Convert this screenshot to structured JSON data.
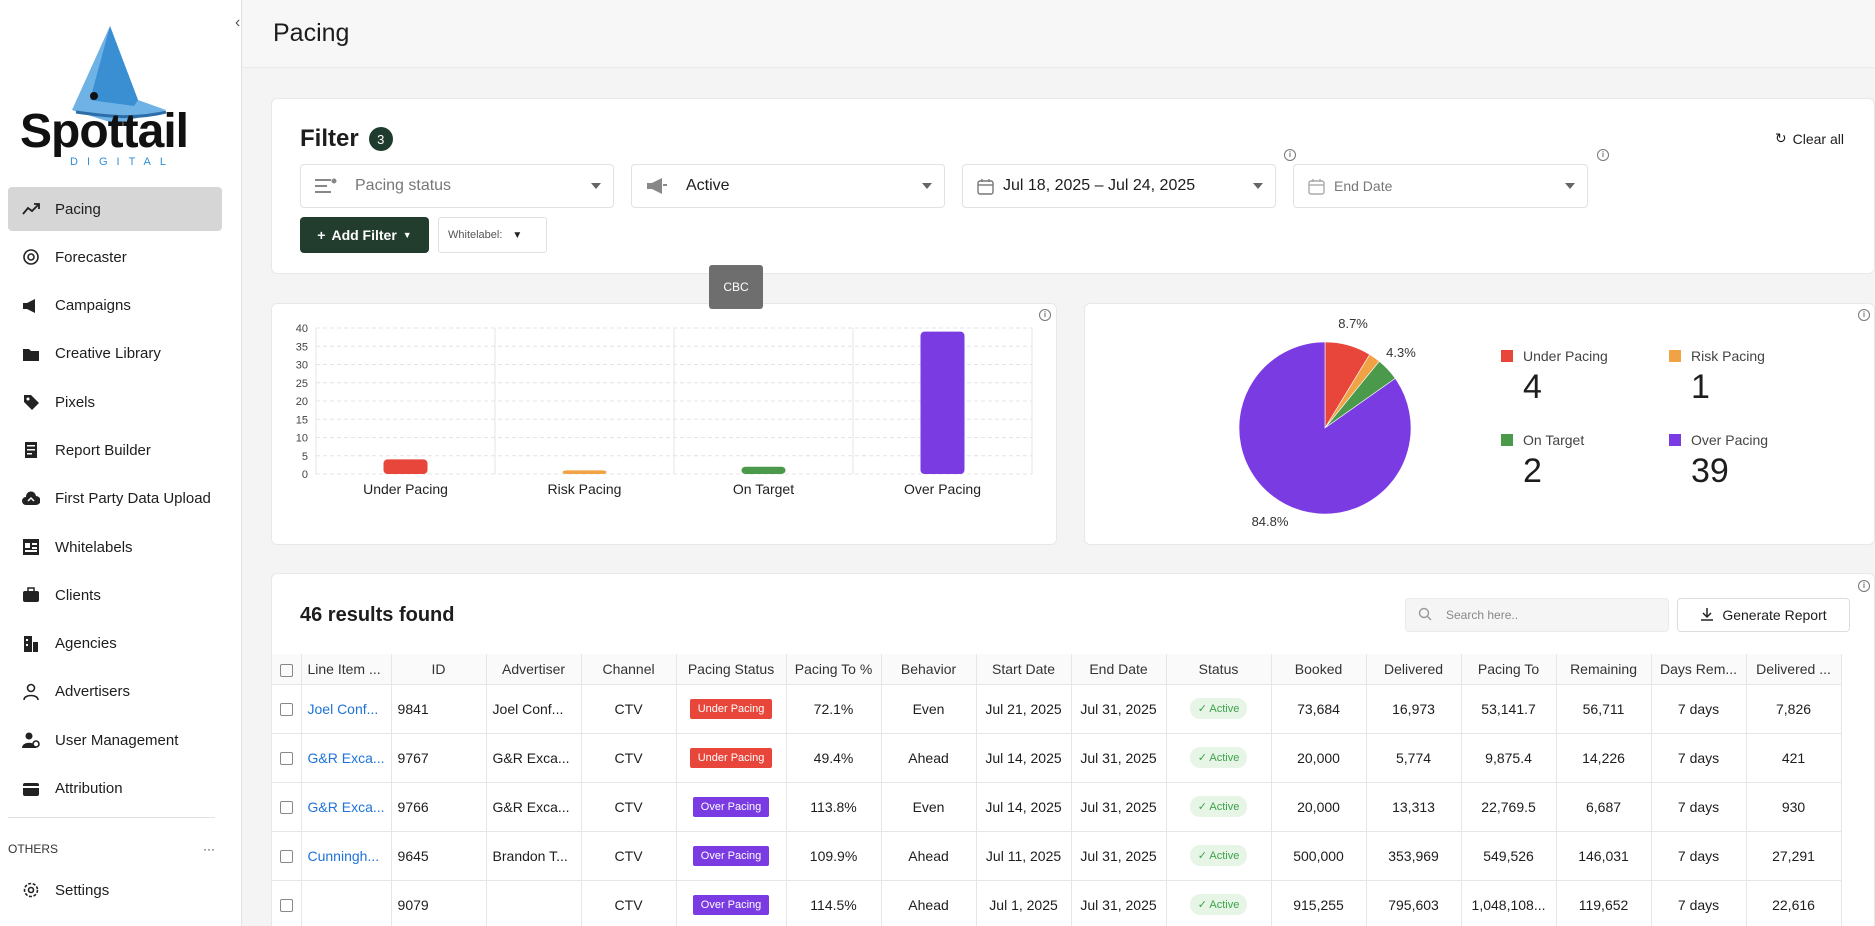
{
  "brand": {
    "name": "Spottail",
    "tagline": "DIGITAL"
  },
  "sidebar": {
    "items": [
      {
        "label": "Pacing",
        "icon": "trending-up-icon"
      },
      {
        "label": "Forecaster",
        "icon": "target-icon"
      },
      {
        "label": "Campaigns",
        "icon": "megaphone-icon"
      },
      {
        "label": "Creative Library",
        "icon": "folder-icon"
      },
      {
        "label": "Pixels",
        "icon": "tag-icon"
      },
      {
        "label": "Report Builder",
        "icon": "report-icon"
      },
      {
        "label": "First Party Data Upload",
        "icon": "cloud-upload-icon"
      },
      {
        "label": "Whitelabels",
        "icon": "grid-icon"
      },
      {
        "label": "Clients",
        "icon": "briefcase-icon"
      },
      {
        "label": "Agencies",
        "icon": "building-icon"
      },
      {
        "label": "Advertisers",
        "icon": "user-icon"
      },
      {
        "label": "User Management",
        "icon": "user-gear-icon"
      },
      {
        "label": "Attribution",
        "icon": "wallet-icon"
      }
    ],
    "others_label": "OTHERS",
    "others_more": "···",
    "settings_label": "Settings"
  },
  "page": {
    "title": "Pacing"
  },
  "filter": {
    "title": "Filter",
    "count": "3",
    "clear_all": "Clear all",
    "pacing_status_placeholder": "Pacing status",
    "status_value": "Active",
    "date_range": "Jul 18, 2025 – Jul 24, 2025",
    "end_date_placeholder": "End Date",
    "add_filter": "Add Filter",
    "whitelabel_label": "Whitelabel:",
    "tooltip": "CBC"
  },
  "chart_data": [
    {
      "type": "bar",
      "categories": [
        "Under Pacing",
        "Risk Pacing",
        "On Target",
        "Over Pacing"
      ],
      "values": [
        4,
        1,
        2,
        39
      ],
      "colors": [
        "#e8463a",
        "#f0a244",
        "#4b9a4c",
        "#7a3be3"
      ],
      "ylim": [
        0,
        40
      ],
      "yticks": [
        0,
        5,
        10,
        15,
        20,
        25,
        30,
        35,
        40
      ],
      "grid": true
    },
    {
      "type": "pie",
      "labels": [
        "Under Pacing",
        "Risk Pacing",
        "On Target",
        "Over Pacing"
      ],
      "values": [
        4,
        1,
        2,
        39
      ],
      "percent_labels": [
        "8.7%",
        "",
        "4.3%",
        "84.8%"
      ],
      "colors": [
        "#e8463a",
        "#f0a244",
        "#4b9a4c",
        "#7a3be3"
      ],
      "legend_position": "right"
    }
  ],
  "legend": [
    {
      "label": "Under Pacing",
      "value": "4",
      "color": "#e8463a"
    },
    {
      "label": "Risk Pacing",
      "value": "1",
      "color": "#f0a244"
    },
    {
      "label": "On Target",
      "value": "2",
      "color": "#4b9a4c"
    },
    {
      "label": "Over Pacing",
      "value": "39",
      "color": "#7a3be3"
    }
  ],
  "results": {
    "count_text": "46 results found",
    "search_placeholder": "Search here..",
    "generate_report": "Generate Report"
  },
  "table": {
    "columns": [
      "Line Item ...",
      "ID",
      "Advertiser",
      "Channel",
      "Pacing Status",
      "Pacing To %",
      "Behavior",
      "Start Date",
      "End Date",
      "Status",
      "Booked",
      "Delivered",
      "Pacing To",
      "Remaining",
      "Days Rem...",
      "Delivered ..."
    ],
    "rows": [
      {
        "line_item": "Joel Conf...",
        "id": "9841",
        "advertiser": "Joel Conf...",
        "channel": "CTV",
        "pacing_status": "Under Pacing",
        "pacing_color": "#e8463a",
        "pacing_pct": "72.1%",
        "behavior": "Even",
        "start": "Jul 21, 2025",
        "end": "Jul 31, 2025",
        "status": "Active",
        "booked": "73,684",
        "delivered": "16,973",
        "pacing_to": "53,141.7",
        "remaining": "56,711",
        "days": "7 days",
        "delivered2": "7,826"
      },
      {
        "line_item": "G&R Exca...",
        "id": "9767",
        "advertiser": "G&R Exca...",
        "channel": "CTV",
        "pacing_status": "Under Pacing",
        "pacing_color": "#e8463a",
        "pacing_pct": "49.4%",
        "behavior": "Ahead",
        "start": "Jul 14, 2025",
        "end": "Jul 31, 2025",
        "status": "Active",
        "booked": "20,000",
        "delivered": "5,774",
        "pacing_to": "9,875.4",
        "remaining": "14,226",
        "days": "7 days",
        "delivered2": "421"
      },
      {
        "line_item": "G&R Exca...",
        "id": "9766",
        "advertiser": "G&R Exca...",
        "channel": "CTV",
        "pacing_status": "Over Pacing",
        "pacing_color": "#7a3be3",
        "pacing_pct": "113.8%",
        "behavior": "Even",
        "start": "Jul 14, 2025",
        "end": "Jul 31, 2025",
        "status": "Active",
        "booked": "20,000",
        "delivered": "13,313",
        "pacing_to": "22,769.5",
        "remaining": "6,687",
        "days": "7 days",
        "delivered2": "930"
      },
      {
        "line_item": "Cunningh...",
        "id": "9645",
        "advertiser": "Brandon T...",
        "channel": "CTV",
        "pacing_status": "Over Pacing",
        "pacing_color": "#7a3be3",
        "pacing_pct": "109.9%",
        "behavior": "Ahead",
        "start": "Jul 11, 2025",
        "end": "Jul 31, 2025",
        "status": "Active",
        "booked": "500,000",
        "delivered": "353,969",
        "pacing_to": "549,526",
        "remaining": "146,031",
        "days": "7 days",
        "delivered2": "27,291"
      },
      {
        "line_item": "",
        "id": "9079",
        "advertiser": "",
        "channel": "CTV",
        "pacing_status": "Over Pacing",
        "pacing_color": "#7a3be3",
        "pacing_pct": "114.5%",
        "behavior": "Ahead",
        "start": "Jul 1, 2025",
        "end": "Jul 31, 2025",
        "status": "Active",
        "booked": "915,255",
        "delivered": "795,603",
        "pacing_to": "1,048,108...",
        "remaining": "119,652",
        "days": "7 days",
        "delivered2": "22,616"
      }
    ]
  }
}
